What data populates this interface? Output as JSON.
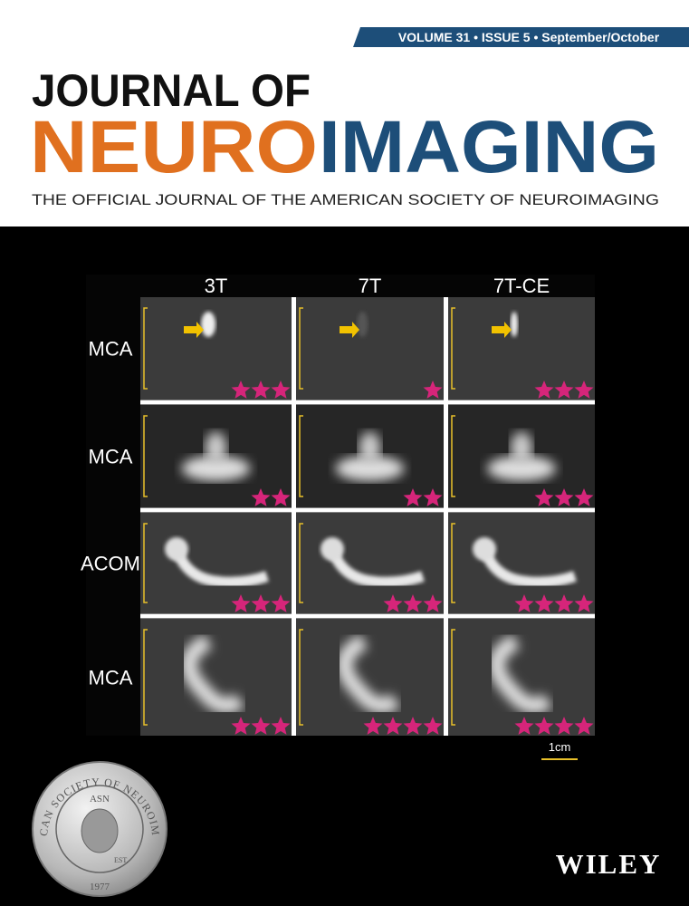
{
  "banner": "VOLUME 31 • ISSUE 5 • September/October",
  "title": {
    "line1": "JOURNAL OF",
    "part1": "NEURO",
    "part2": "IMAGING"
  },
  "subtitle": "THE OFFICIAL JOURNAL OF THE AMERICAN SOCIETY OF NEUROIMAGING",
  "figure": {
    "columns": [
      "3T",
      "7T",
      "7T-CE"
    ],
    "rows": [
      {
        "label": "MCA",
        "ratings": [
          3,
          1,
          3
        ]
      },
      {
        "label": "MCA",
        "ratings": [
          2,
          2,
          3
        ]
      },
      {
        "label": "ACOM",
        "ratings": [
          3,
          3,
          4
        ]
      },
      {
        "label": "MCA",
        "ratings": [
          3,
          4,
          4
        ]
      }
    ],
    "scale_bar": "1cm"
  },
  "seal": {
    "ring": "AMERICAN SOCIETY OF NEUROIMAGING",
    "center": "ASN",
    "est": "EST.",
    "year": "1977"
  },
  "publisher": "WILEY"
}
